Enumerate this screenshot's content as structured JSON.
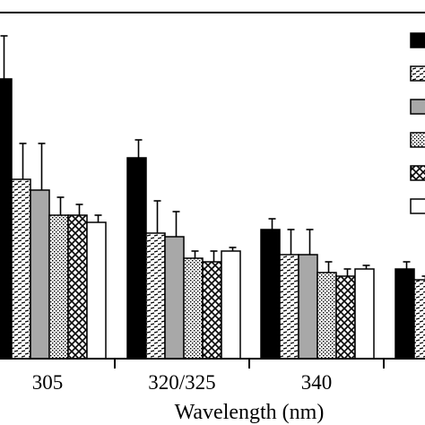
{
  "chart_data": {
    "type": "bar",
    "title": "",
    "xlabel": "Wavelength (nm)",
    "ylabel": "",
    "categories": [
      "305",
      "320/325",
      "340"
    ],
    "grid": false,
    "legend_placement": "top-right",
    "series": [
      {
        "pattern": "solid-black",
        "values": [
          0.78,
          0.56,
          0.36
        ],
        "errors": [
          0.12,
          0.05,
          0.03
        ]
      },
      {
        "pattern": "dashes",
        "values": [
          0.5,
          0.35,
          0.29
        ],
        "errors": [
          0.1,
          0.09,
          0.07
        ]
      },
      {
        "pattern": "solid-gray",
        "values": [
          0.47,
          0.34,
          0.29
        ],
        "errors": [
          0.13,
          0.07,
          0.07
        ]
      },
      {
        "pattern": "dots",
        "values": [
          0.4,
          0.28,
          0.24
        ],
        "errors": [
          0.05,
          0.02,
          0.03
        ]
      },
      {
        "pattern": "crosshatch",
        "values": [
          0.4,
          0.27,
          0.23
        ],
        "errors": [
          0.03,
          0.03,
          0.02
        ]
      },
      {
        "pattern": "white",
        "values": [
          0.38,
          0.3,
          0.25
        ],
        "errors": [
          0.02,
          0.01,
          0.01
        ]
      }
    ],
    "partial_category_values": [
      0.25,
      0.22
    ],
    "partial_category_errors": [
      0.02,
      0.01
    ]
  },
  "colors": {
    "black": "#000000",
    "gray": "#a8a8a8",
    "white": "#ffffff"
  }
}
